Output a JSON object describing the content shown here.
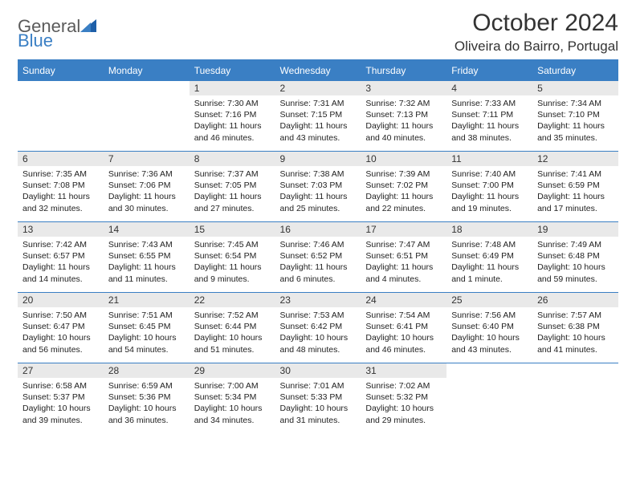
{
  "logo": {
    "text1": "General",
    "text2": "Blue"
  },
  "title": "October 2024",
  "location": "Oliveira do Bairro, Portugal",
  "colors": {
    "header_bg": "#3a7fc4",
    "header_text": "#ffffff",
    "daynum_bg": "#e9e9e9",
    "border": "#3a7fc4",
    "body_text": "#222222",
    "logo_gray": "#5a5a5a",
    "logo_blue": "#3a7fc4"
  },
  "day_headers": [
    "Sunday",
    "Monday",
    "Tuesday",
    "Wednesday",
    "Thursday",
    "Friday",
    "Saturday"
  ],
  "weeks": [
    [
      {
        "day": "",
        "sunrise": "",
        "sunset": "",
        "daylight": ""
      },
      {
        "day": "",
        "sunrise": "",
        "sunset": "",
        "daylight": ""
      },
      {
        "day": "1",
        "sunrise": "Sunrise: 7:30 AM",
        "sunset": "Sunset: 7:16 PM",
        "daylight": "Daylight: 11 hours and 46 minutes."
      },
      {
        "day": "2",
        "sunrise": "Sunrise: 7:31 AM",
        "sunset": "Sunset: 7:15 PM",
        "daylight": "Daylight: 11 hours and 43 minutes."
      },
      {
        "day": "3",
        "sunrise": "Sunrise: 7:32 AM",
        "sunset": "Sunset: 7:13 PM",
        "daylight": "Daylight: 11 hours and 40 minutes."
      },
      {
        "day": "4",
        "sunrise": "Sunrise: 7:33 AM",
        "sunset": "Sunset: 7:11 PM",
        "daylight": "Daylight: 11 hours and 38 minutes."
      },
      {
        "day": "5",
        "sunrise": "Sunrise: 7:34 AM",
        "sunset": "Sunset: 7:10 PM",
        "daylight": "Daylight: 11 hours and 35 minutes."
      }
    ],
    [
      {
        "day": "6",
        "sunrise": "Sunrise: 7:35 AM",
        "sunset": "Sunset: 7:08 PM",
        "daylight": "Daylight: 11 hours and 32 minutes."
      },
      {
        "day": "7",
        "sunrise": "Sunrise: 7:36 AM",
        "sunset": "Sunset: 7:06 PM",
        "daylight": "Daylight: 11 hours and 30 minutes."
      },
      {
        "day": "8",
        "sunrise": "Sunrise: 7:37 AM",
        "sunset": "Sunset: 7:05 PM",
        "daylight": "Daylight: 11 hours and 27 minutes."
      },
      {
        "day": "9",
        "sunrise": "Sunrise: 7:38 AM",
        "sunset": "Sunset: 7:03 PM",
        "daylight": "Daylight: 11 hours and 25 minutes."
      },
      {
        "day": "10",
        "sunrise": "Sunrise: 7:39 AM",
        "sunset": "Sunset: 7:02 PM",
        "daylight": "Daylight: 11 hours and 22 minutes."
      },
      {
        "day": "11",
        "sunrise": "Sunrise: 7:40 AM",
        "sunset": "Sunset: 7:00 PM",
        "daylight": "Daylight: 11 hours and 19 minutes."
      },
      {
        "day": "12",
        "sunrise": "Sunrise: 7:41 AM",
        "sunset": "Sunset: 6:59 PM",
        "daylight": "Daylight: 11 hours and 17 minutes."
      }
    ],
    [
      {
        "day": "13",
        "sunrise": "Sunrise: 7:42 AM",
        "sunset": "Sunset: 6:57 PM",
        "daylight": "Daylight: 11 hours and 14 minutes."
      },
      {
        "day": "14",
        "sunrise": "Sunrise: 7:43 AM",
        "sunset": "Sunset: 6:55 PM",
        "daylight": "Daylight: 11 hours and 11 minutes."
      },
      {
        "day": "15",
        "sunrise": "Sunrise: 7:45 AM",
        "sunset": "Sunset: 6:54 PM",
        "daylight": "Daylight: 11 hours and 9 minutes."
      },
      {
        "day": "16",
        "sunrise": "Sunrise: 7:46 AM",
        "sunset": "Sunset: 6:52 PM",
        "daylight": "Daylight: 11 hours and 6 minutes."
      },
      {
        "day": "17",
        "sunrise": "Sunrise: 7:47 AM",
        "sunset": "Sunset: 6:51 PM",
        "daylight": "Daylight: 11 hours and 4 minutes."
      },
      {
        "day": "18",
        "sunrise": "Sunrise: 7:48 AM",
        "sunset": "Sunset: 6:49 PM",
        "daylight": "Daylight: 11 hours and 1 minute."
      },
      {
        "day": "19",
        "sunrise": "Sunrise: 7:49 AM",
        "sunset": "Sunset: 6:48 PM",
        "daylight": "Daylight: 10 hours and 59 minutes."
      }
    ],
    [
      {
        "day": "20",
        "sunrise": "Sunrise: 7:50 AM",
        "sunset": "Sunset: 6:47 PM",
        "daylight": "Daylight: 10 hours and 56 minutes."
      },
      {
        "day": "21",
        "sunrise": "Sunrise: 7:51 AM",
        "sunset": "Sunset: 6:45 PM",
        "daylight": "Daylight: 10 hours and 54 minutes."
      },
      {
        "day": "22",
        "sunrise": "Sunrise: 7:52 AM",
        "sunset": "Sunset: 6:44 PM",
        "daylight": "Daylight: 10 hours and 51 minutes."
      },
      {
        "day": "23",
        "sunrise": "Sunrise: 7:53 AM",
        "sunset": "Sunset: 6:42 PM",
        "daylight": "Daylight: 10 hours and 48 minutes."
      },
      {
        "day": "24",
        "sunrise": "Sunrise: 7:54 AM",
        "sunset": "Sunset: 6:41 PM",
        "daylight": "Daylight: 10 hours and 46 minutes."
      },
      {
        "day": "25",
        "sunrise": "Sunrise: 7:56 AM",
        "sunset": "Sunset: 6:40 PM",
        "daylight": "Daylight: 10 hours and 43 minutes."
      },
      {
        "day": "26",
        "sunrise": "Sunrise: 7:57 AM",
        "sunset": "Sunset: 6:38 PM",
        "daylight": "Daylight: 10 hours and 41 minutes."
      }
    ],
    [
      {
        "day": "27",
        "sunrise": "Sunrise: 6:58 AM",
        "sunset": "Sunset: 5:37 PM",
        "daylight": "Daylight: 10 hours and 39 minutes."
      },
      {
        "day": "28",
        "sunrise": "Sunrise: 6:59 AM",
        "sunset": "Sunset: 5:36 PM",
        "daylight": "Daylight: 10 hours and 36 minutes."
      },
      {
        "day": "29",
        "sunrise": "Sunrise: 7:00 AM",
        "sunset": "Sunset: 5:34 PM",
        "daylight": "Daylight: 10 hours and 34 minutes."
      },
      {
        "day": "30",
        "sunrise": "Sunrise: 7:01 AM",
        "sunset": "Sunset: 5:33 PM",
        "daylight": "Daylight: 10 hours and 31 minutes."
      },
      {
        "day": "31",
        "sunrise": "Sunrise: 7:02 AM",
        "sunset": "Sunset: 5:32 PM",
        "daylight": "Daylight: 10 hours and 29 minutes."
      },
      {
        "day": "",
        "sunrise": "",
        "sunset": "",
        "daylight": ""
      },
      {
        "day": "",
        "sunrise": "",
        "sunset": "",
        "daylight": ""
      }
    ]
  ]
}
